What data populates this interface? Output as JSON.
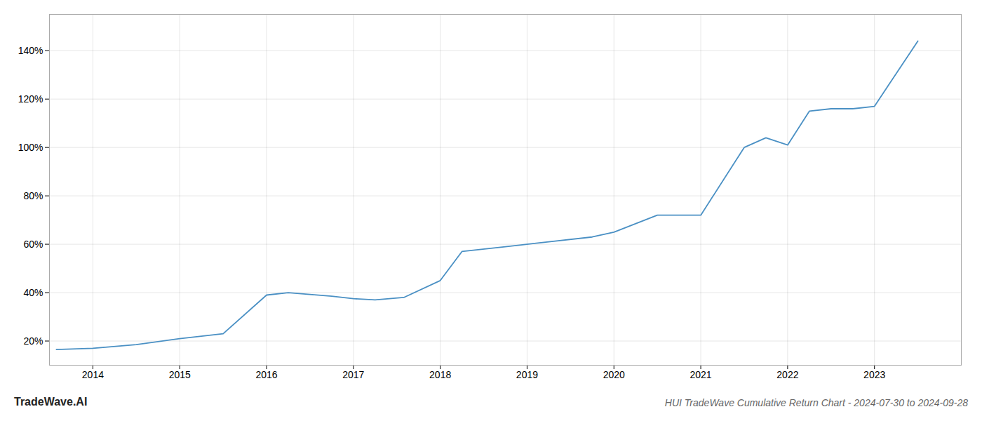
{
  "chart_data": {
    "type": "line",
    "title": "HUI TradeWave Cumulative Return Chart - 2024-07-30 to 2024-09-28",
    "watermark": "TradeWave.AI",
    "x": [
      2013.58,
      2014.0,
      2014.5,
      2015.0,
      2015.5,
      2016.0,
      2016.25,
      2016.75,
      2017.0,
      2017.25,
      2017.58,
      2018.0,
      2018.25,
      2018.75,
      2019.0,
      2019.25,
      2019.75,
      2020.0,
      2020.5,
      2020.75,
      2021.0,
      2021.5,
      2021.75,
      2022.0,
      2022.25,
      2022.5,
      2022.75,
      2023.0,
      2023.5
    ],
    "values": [
      16.5,
      17,
      18.5,
      21,
      23,
      39,
      40,
      38.5,
      37.5,
      37,
      38,
      45,
      57,
      59,
      60,
      61,
      63,
      65,
      72,
      72,
      72,
      100,
      104,
      101,
      115,
      116,
      116,
      117,
      144
    ],
    "color": "#4a90c4",
    "xlim": [
      2013.5,
      2024.0
    ],
    "xticks": [
      2014,
      2015,
      2016,
      2017,
      2018,
      2019,
      2020,
      2021,
      2022,
      2023
    ],
    "ylim": [
      10,
      155
    ],
    "yticks": [
      {
        "value": 20,
        "label": "20%"
      },
      {
        "value": 40,
        "label": "40%"
      },
      {
        "value": 60,
        "label": "60%"
      },
      {
        "value": 80,
        "label": "80%"
      },
      {
        "value": 100,
        "label": "100%"
      },
      {
        "value": 120,
        "label": "120%"
      },
      {
        "value": 140,
        "label": "140%"
      }
    ],
    "grid": true
  }
}
